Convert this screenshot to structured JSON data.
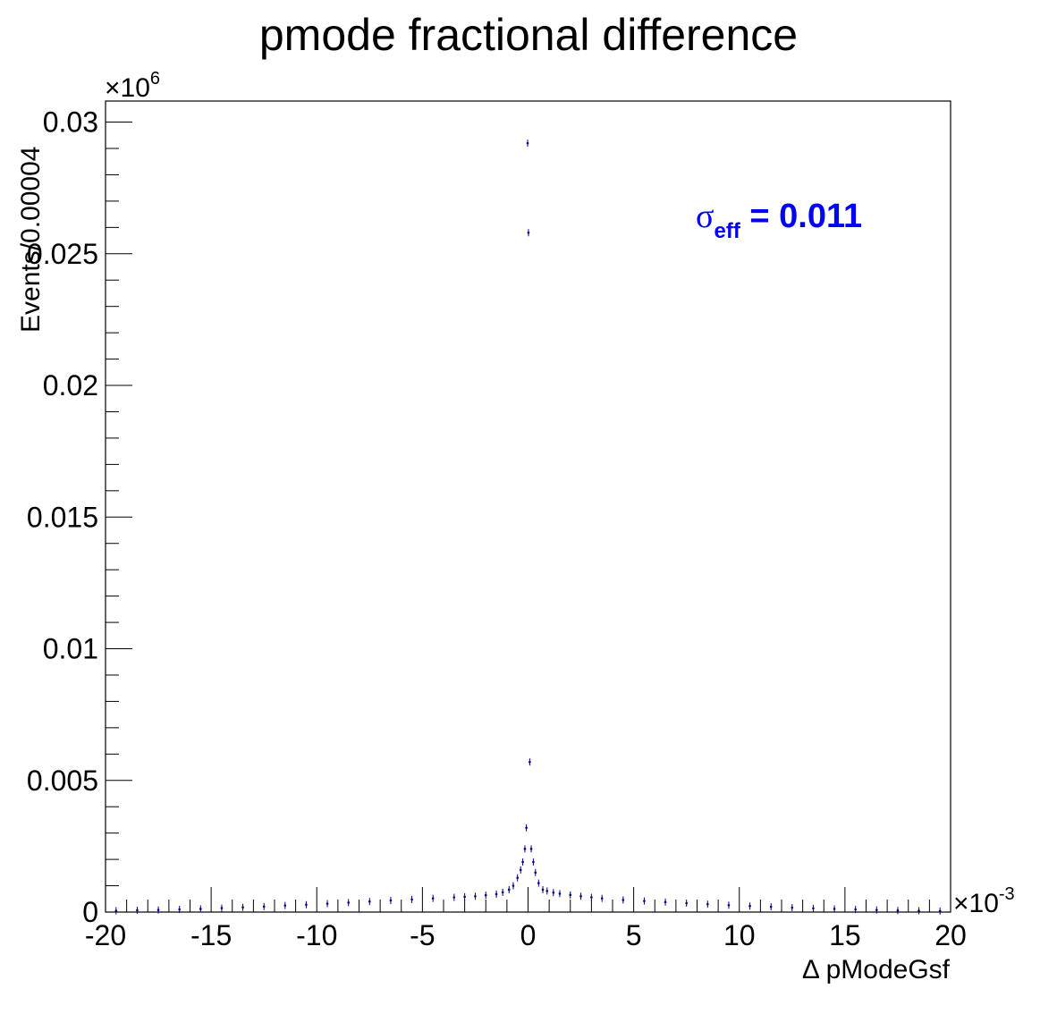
{
  "chart_data": {
    "type": "scatter",
    "title": "pmode fractional difference",
    "xlabel": "Δ pModeGsf",
    "ylabel": "Events/0.00004",
    "x_exponent": "×10",
    "x_exponent_power": "-3",
    "y_exponent": "×10",
    "y_exponent_power": "6",
    "xlim": [
      -20,
      20
    ],
    "ylim": [
      0,
      0.0308
    ],
    "x_ticks": [
      {
        "v": -20,
        "label": "-20"
      },
      {
        "v": -15,
        "label": "-15"
      },
      {
        "v": -10,
        "label": "-10"
      },
      {
        "v": -5,
        "label": "-5"
      },
      {
        "v": 0,
        "label": "0"
      },
      {
        "v": 5,
        "label": "5"
      },
      {
        "v": 10,
        "label": "10"
      },
      {
        "v": 15,
        "label": "15"
      },
      {
        "v": 20,
        "label": "20"
      }
    ],
    "y_ticks": [
      {
        "v": 0,
        "label": "0"
      },
      {
        "v": 0.005,
        "label": "0.005"
      },
      {
        "v": 0.01,
        "label": "0.01"
      },
      {
        "v": 0.015,
        "label": "0.015"
      },
      {
        "v": 0.02,
        "label": "0.02"
      },
      {
        "v": 0.025,
        "label": "0.025"
      },
      {
        "v": 0.03,
        "label": "0.03"
      }
    ],
    "annotation": {
      "symbol": "σ",
      "subscript": "eff",
      "text": " = 0.011",
      "color": "#0000ff"
    },
    "marker_color": "#000080",
    "grid": false,
    "series": [
      {
        "x": [
          -19.5,
          -18.5,
          -17.5,
          -16.5,
          -15.5,
          -14.5,
          -13.5,
          -12.5,
          -11.5,
          -10.5,
          -9.5,
          -8.5,
          -7.5,
          -6.5,
          -5.5,
          -4.5,
          -3.5,
          -3.0,
          -2.5,
          -2.0,
          -1.5,
          -1.2,
          -0.9,
          -0.7,
          -0.5,
          -0.35,
          -0.25,
          -0.15,
          -0.08,
          -0.02,
          0.02,
          0.08,
          0.15,
          0.25,
          0.35,
          0.5,
          0.7,
          0.9,
          1.2,
          1.5,
          2.0,
          2.5,
          3.0,
          3.5,
          4.5,
          5.5,
          6.5,
          7.5,
          8.5,
          9.5,
          10.5,
          11.5,
          12.5,
          13.5,
          14.5,
          15.5,
          16.5,
          17.5,
          18.5,
          19.5
        ],
        "y": [
          5e-05,
          7e-05,
          8e-05,
          0.0001,
          0.00012,
          0.00015,
          0.00018,
          0.00021,
          0.00025,
          0.00028,
          0.00032,
          0.00036,
          0.0004,
          0.00044,
          0.00048,
          0.00052,
          0.00056,
          0.00058,
          0.0006,
          0.00064,
          0.00068,
          0.00075,
          0.00085,
          0.001,
          0.0013,
          0.0016,
          0.0019,
          0.0024,
          0.0032,
          0.0292,
          0.0258,
          0.0057,
          0.0024,
          0.0019,
          0.0015,
          0.0011,
          0.00085,
          0.0008,
          0.00074,
          0.0007,
          0.00065,
          0.0006,
          0.00056,
          0.00052,
          0.00046,
          0.00042,
          0.00038,
          0.00034,
          0.0003,
          0.00026,
          0.00023,
          0.0002,
          0.00017,
          0.00014,
          0.00012,
          0.0001,
          8e-05,
          6e-05,
          5e-05,
          4e-05
        ]
      }
    ]
  }
}
